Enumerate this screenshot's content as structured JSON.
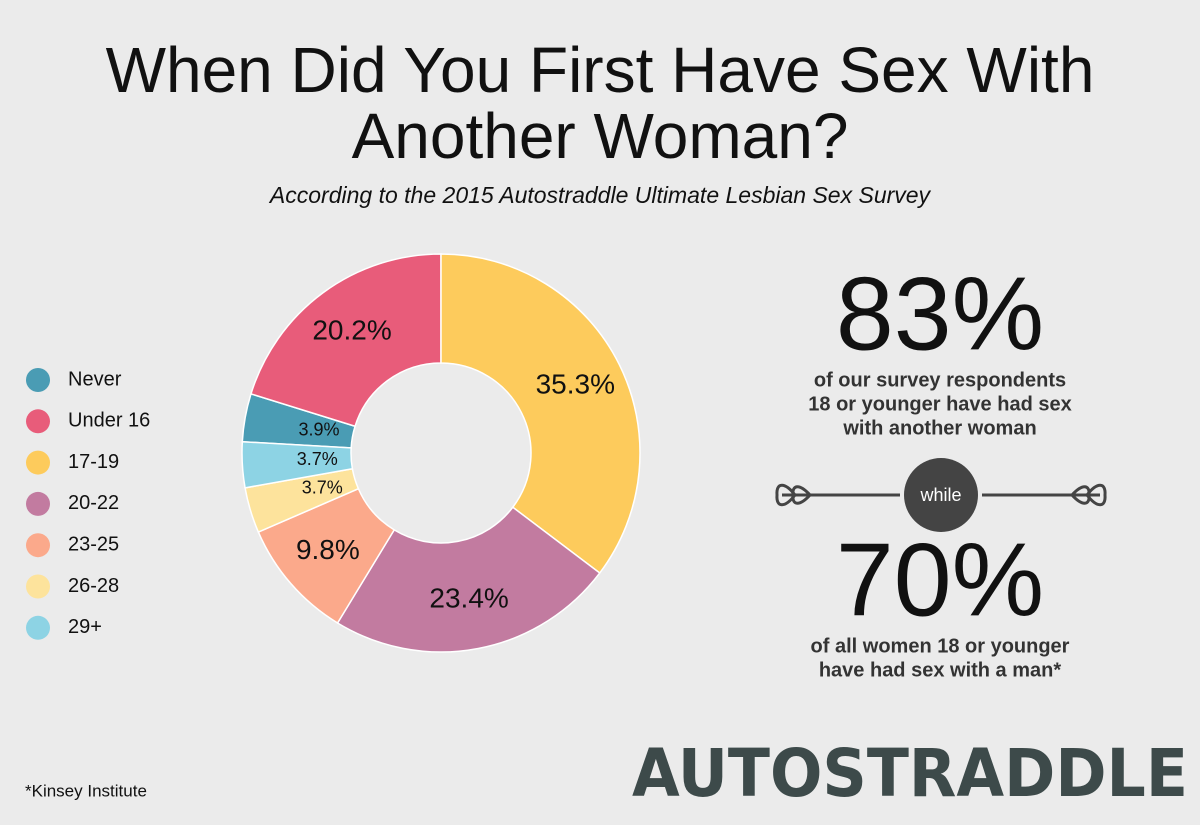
{
  "chart_data": {
    "type": "donut",
    "title": "When Did You First Have Sex With Another Woman?",
    "subtitle": "According to the 2015 Autostraddle Ultimate Lesbian Sex Survey",
    "categories": [
      "Never",
      "Under 16",
      "17-19",
      "20-22",
      "23-25",
      "26-28",
      "29+"
    ],
    "values": [
      3.9,
      20.2,
      35.3,
      23.4,
      9.8,
      3.7,
      3.7
    ],
    "value_labels": [
      "3.9%",
      "20.2%",
      "35.3%",
      "23.4%",
      "9.8%",
      "3.7%",
      "3.7%"
    ],
    "colors": [
      "#4a9cb4",
      "#e85c7a",
      "#fdcb5c",
      "#c27ba0",
      "#fba98b",
      "#fde39c",
      "#8dd3e4"
    ],
    "legend": "left",
    "annotations": {
      "stat1": "83%",
      "stat1_text": [
        "of our survey respondents",
        "18 or younger have had sex",
        "with another woman"
      ],
      "connector": "while",
      "stat2": "70%",
      "stat2_text": [
        "of all women 18 or younger",
        "have had sex with a man*"
      ],
      "footnote": "*Kinsey Institute",
      "logo": "AUTOSTRADDLE"
    }
  }
}
